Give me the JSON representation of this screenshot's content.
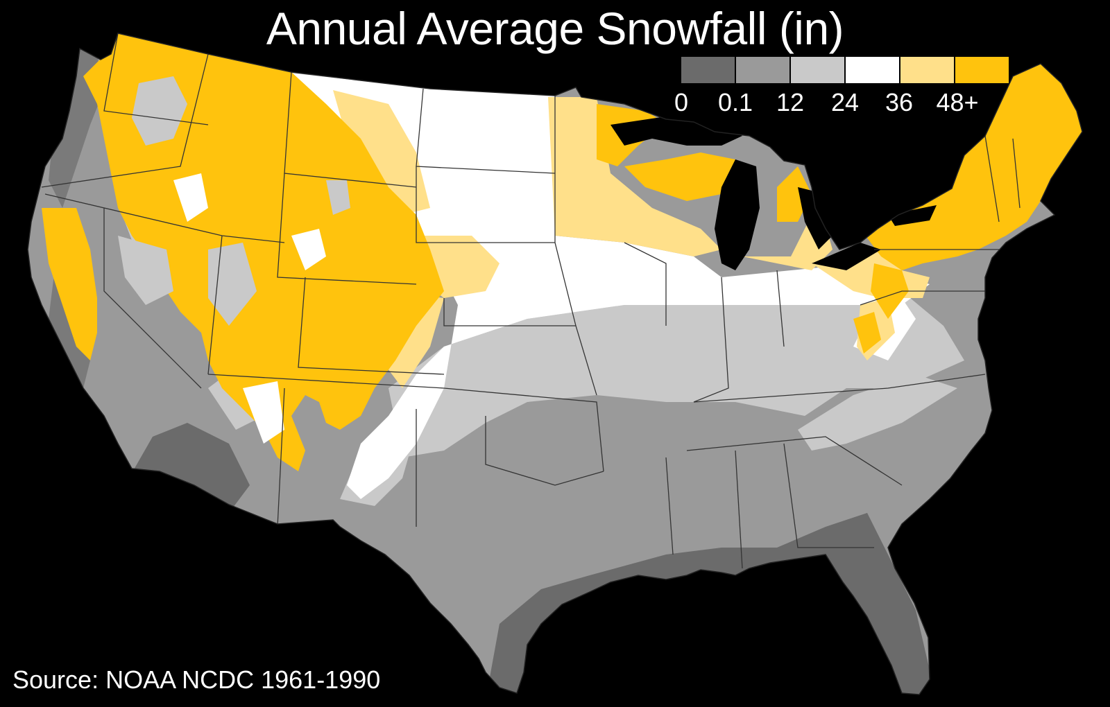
{
  "title": "Annual Average Snowfall (in)",
  "source": "Source: NOAA NCDC 1961-1990",
  "legend": {
    "classes": [
      {
        "color": "#6b6b6b"
      },
      {
        "color": "#9a9a9a"
      },
      {
        "color": "#c9c9c9"
      },
      {
        "color": "#ffffff"
      },
      {
        "color": "#ffe08a"
      },
      {
        "color": "#ffc30d"
      }
    ],
    "ticks": [
      "0",
      "0.1",
      "12",
      "24",
      "36",
      "48+"
    ]
  },
  "colors": {
    "background": "#000000",
    "border": "#333333",
    "lake": "#000000"
  }
}
